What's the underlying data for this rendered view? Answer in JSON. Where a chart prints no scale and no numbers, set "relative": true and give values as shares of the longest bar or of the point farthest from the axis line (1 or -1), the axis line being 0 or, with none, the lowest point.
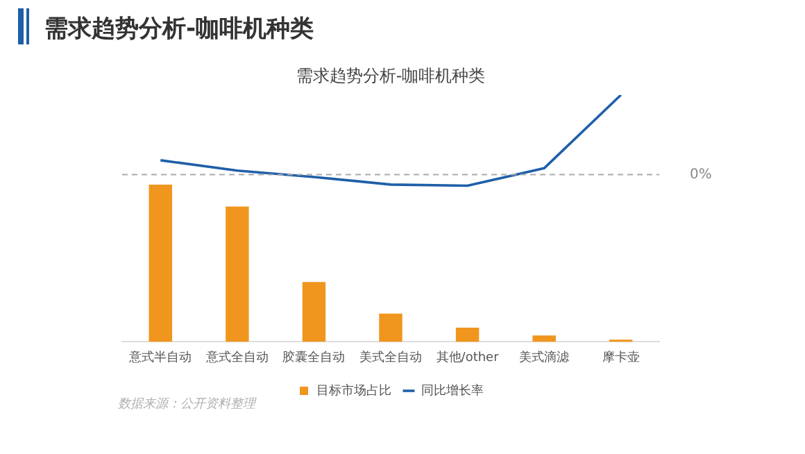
{
  "chart_data": {
    "type": "bar",
    "title": "需求趋势分析-咖啡机种类",
    "subtitle": "需求趋势分析-咖啡机种类",
    "relative": true,
    "categories": [
      "意式半自动",
      "意式全自动",
      "胶囊全自动",
      "美式全自动",
      "其他/other",
      "美式滴滤",
      "摩卡壶"
    ],
    "series": [
      {
        "name": "目标市场占比",
        "color": "#f0961e",
        "values": [
          1,
          0.86,
          0.38,
          0.18,
          0.09,
          0.04,
          0.014
        ]
      },
      {
        "name": "同比增长率",
        "type": "line",
        "axis": "y2",
        "color": "#1f5fa8",
        "values": [
          0.18,
          0.05,
          -0.03,
          -0.125,
          -0.14,
          0.08,
          1
        ]
      }
    ],
    "ref_lines": [
      {
        "axis": "y2",
        "value": 0,
        "label": "0%",
        "color": "#aaaaaa",
        "line_style": "dashed"
      }
    ],
    "annotations": [
      "数据来源：公开资料整理"
    ],
    "legend": "bottom",
    "grid": false,
    "marker": "none",
    "line_style": "solid"
  }
}
